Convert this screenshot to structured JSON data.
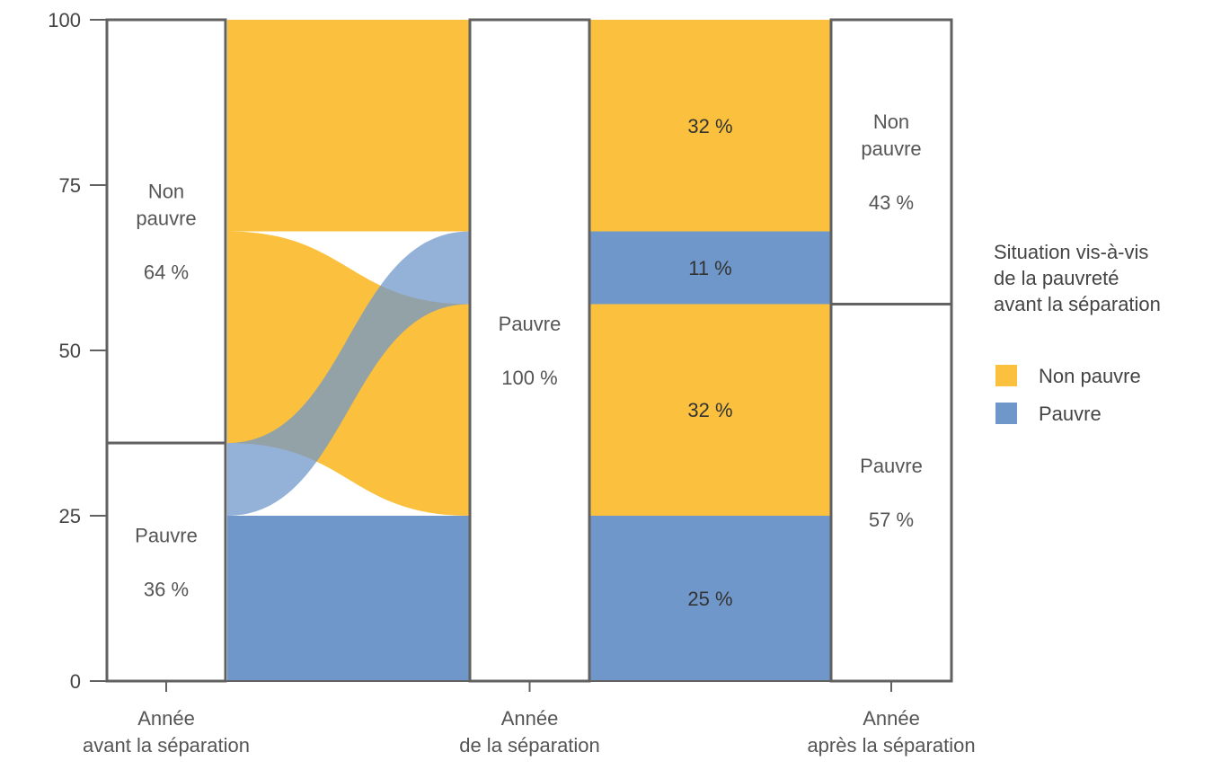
{
  "chart_data": {
    "type": "alluvial",
    "yticks": [
      0,
      25,
      50,
      75,
      100
    ],
    "ylim": [
      0,
      100
    ],
    "colors": {
      "non_pauvre": "#FBC13E",
      "pauvre": "#7097C9",
      "overlap": "#7F8399",
      "bar_stroke": "#616161",
      "axis": "#616161"
    },
    "stages": [
      {
        "id": "avant",
        "label_lines": [
          "Année",
          "avant la séparation"
        ],
        "segments": [
          {
            "name_lines": [
              "Non",
              "pauvre"
            ],
            "pct_label": "64 %",
            "from": 36,
            "to": 100
          },
          {
            "name_lines": [
              "Pauvre"
            ],
            "pct_label": "36 %",
            "from": 0,
            "to": 36
          }
        ]
      },
      {
        "id": "pendant",
        "label_lines": [
          "Année",
          "de la séparation"
        ],
        "segments": [
          {
            "name_lines": [
              "Pauvre"
            ],
            "pct_label": "100 %",
            "from": 0,
            "to": 100
          }
        ]
      },
      {
        "id": "apres",
        "label_lines": [
          "Année",
          "après la séparation"
        ],
        "segments": [
          {
            "name_lines": [
              "Non",
              "pauvre"
            ],
            "pct_label": "43 %",
            "from": 57,
            "to": 100
          },
          {
            "name_lines": [
              "Pauvre"
            ],
            "pct_label": "57 %",
            "from": 0,
            "to": 57
          }
        ]
      }
    ],
    "flows_left": [
      {
        "category": "non_pauvre",
        "from": [
          68,
          100
        ],
        "to": [
          68,
          100
        ]
      },
      {
        "category": "non_pauvre",
        "from": [
          36,
          68
        ],
        "to": [
          25,
          57
        ]
      },
      {
        "category": "pauvre",
        "from": [
          25,
          36
        ],
        "to": [
          57,
          68
        ]
      },
      {
        "category": "pauvre",
        "from": [
          0,
          25
        ],
        "to": [
          0,
          25
        ]
      }
    ],
    "flows_right": [
      {
        "category": "non_pauvre",
        "from": 68,
        "to": 100,
        "label": "32 %"
      },
      {
        "category": "pauvre",
        "from": 57,
        "to": 68,
        "label": "11 %"
      },
      {
        "category": "non_pauvre",
        "from": 25,
        "to": 57,
        "label": "32 %"
      },
      {
        "category": "pauvre",
        "from": 0,
        "to": 25,
        "label": "25 %"
      }
    ],
    "legend": {
      "title_lines": [
        "Situation vis-à-vis",
        "de la pauvreté",
        "avant la séparation"
      ],
      "items": [
        {
          "key": "non_pauvre",
          "label": "Non pauvre"
        },
        {
          "key": "pauvre",
          "label": "Pauvre"
        }
      ]
    }
  }
}
